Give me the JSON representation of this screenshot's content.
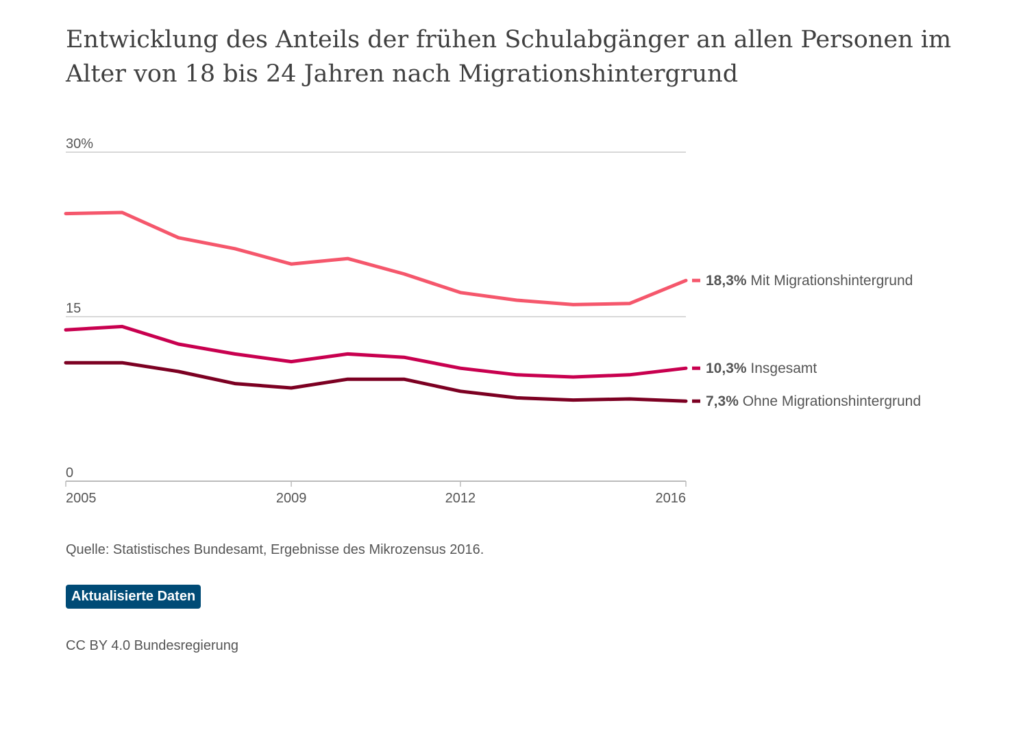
{
  "header": {
    "title": "Entwicklung des Anteils der frühen Schulabgänger an allen Personen im Alter von 18 bis 24 Jahren nach Migrationshintergrund"
  },
  "chart_data": {
    "type": "line",
    "x": [
      2005,
      2006,
      2007,
      2008,
      2009,
      2010,
      2011,
      2012,
      2013,
      2014,
      2015,
      2016
    ],
    "ylim": [
      0,
      30
    ],
    "yticks": [
      0,
      15,
      30
    ],
    "ytick_labels": [
      "0",
      "15",
      "30%"
    ],
    "xticks": [
      2005,
      2009,
      2012,
      2016
    ],
    "xtick_labels": [
      "2005",
      "2009",
      "2012",
      "2016"
    ],
    "grid": true,
    "series": [
      {
        "name": "Mit Migrationshintergrund",
        "value_label": "18,3%",
        "color": "#f5576c",
        "values": [
          24.4,
          24.5,
          22.2,
          21.2,
          19.8,
          20.3,
          18.9,
          17.2,
          16.5,
          16.1,
          16.2,
          18.3
        ]
      },
      {
        "name": "Insgesamt",
        "value_label": "10,3%",
        "color": "#c8004f",
        "values": [
          13.8,
          14.1,
          12.5,
          11.6,
          10.9,
          11.6,
          11.3,
          10.3,
          9.7,
          9.5,
          9.7,
          10.3
        ]
      },
      {
        "name": "Ohne Migrationshintergrund",
        "value_label": "7,3%",
        "color": "#7c0022",
        "values": [
          10.8,
          10.8,
          10.0,
          8.9,
          8.5,
          9.3,
          9.3,
          8.2,
          7.6,
          7.4,
          7.5,
          7.3
        ]
      }
    ]
  },
  "footer": {
    "source": "Quelle: Statistisches Bundesamt, Ergebnisse des Mikrozensus 2016.",
    "update_label": "Aktualisierte Daten",
    "license": "CC BY 4.0 Bundesregierung"
  }
}
